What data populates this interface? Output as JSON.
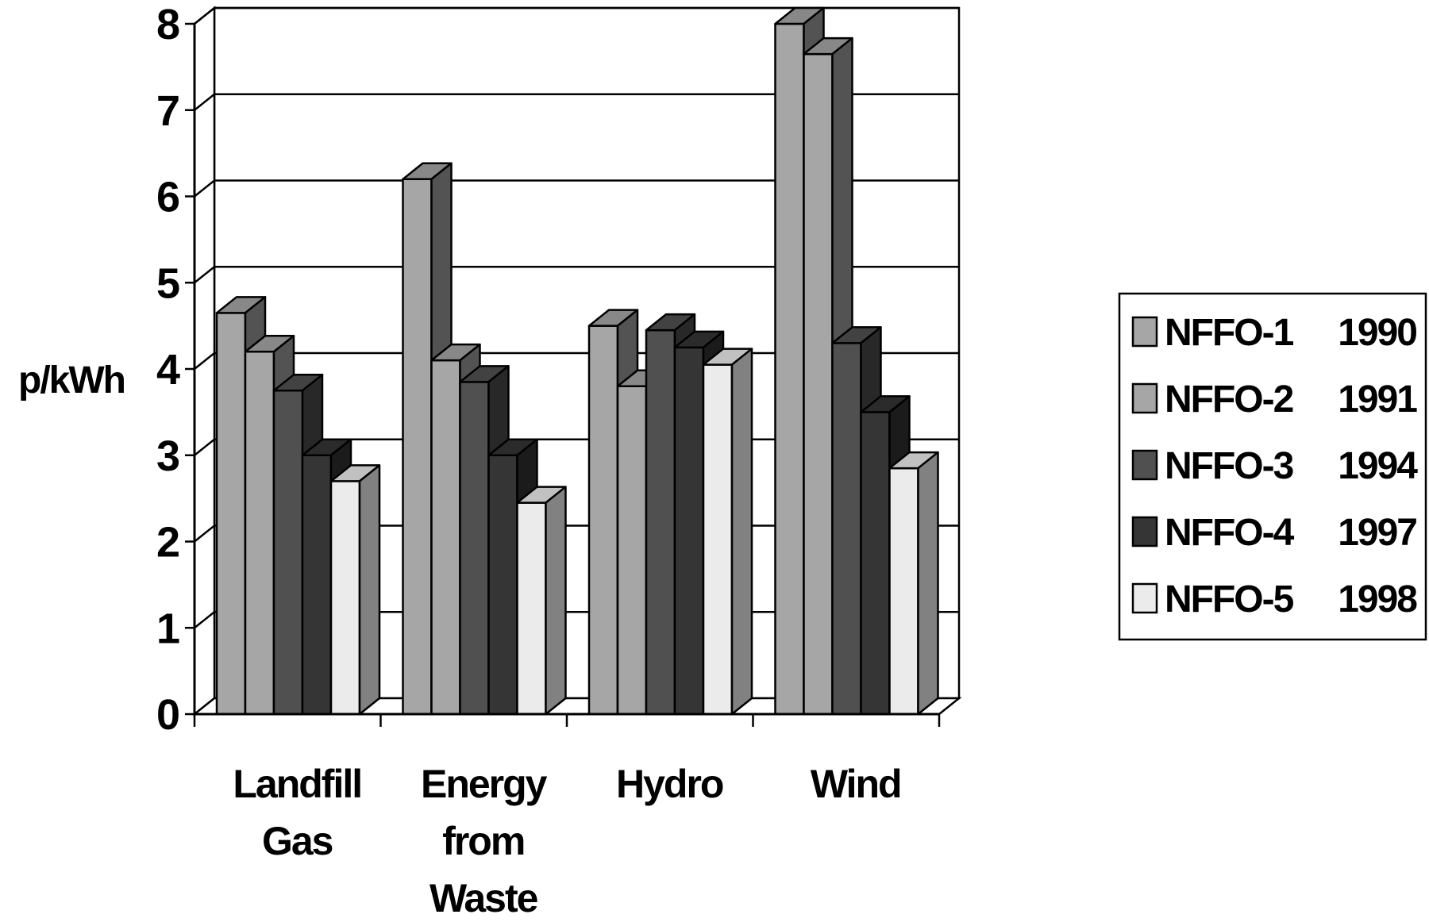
{
  "chart_data": {
    "type": "bar",
    "style": "3d-clustered-column",
    "ylabel": "p/kWh",
    "xlabel": "",
    "title": "",
    "ylim": [
      0,
      8
    ],
    "yticks": [
      "0",
      "1",
      "2",
      "3",
      "4",
      "5",
      "6",
      "7",
      "8"
    ],
    "grid": true,
    "legend_position": "right",
    "categories": [
      {
        "lines": [
          "Landfill",
          "Gas"
        ]
      },
      {
        "lines": [
          "Energy",
          "from",
          "Waste"
        ]
      },
      {
        "lines": [
          "Hydro"
        ]
      },
      {
        "lines": [
          "Wind"
        ]
      }
    ],
    "series": [
      {
        "name": "NFFO-1",
        "year": "1990",
        "color": "#a6a6a6",
        "values": [
          4.65,
          6.2,
          4.5,
          8.0
        ]
      },
      {
        "name": "NFFO-2",
        "year": "1991",
        "color": "#a6a6a6",
        "values": [
          4.2,
          4.1,
          3.8,
          7.65
        ]
      },
      {
        "name": "NFFO-3",
        "year": "1994",
        "color": "#505050",
        "values": [
          3.75,
          3.85,
          4.45,
          4.3
        ]
      },
      {
        "name": "NFFO-4",
        "year": "1997",
        "color": "#353535",
        "values": [
          3.0,
          3.0,
          4.25,
          3.5
        ]
      },
      {
        "name": "NFFO-5",
        "year": "1998",
        "color": "#ebebeb",
        "values": [
          2.7,
          2.45,
          4.05,
          2.85
        ]
      }
    ]
  }
}
